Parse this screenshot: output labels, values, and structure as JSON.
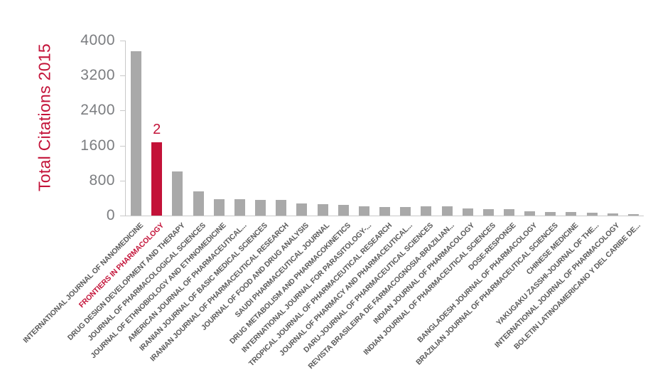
{
  "colors": {
    "accent": "#c31238",
    "bar": "#a9a9a9",
    "axis": "#c9c9c9",
    "tick_label": "#7b7d80",
    "category_label": "#595959"
  },
  "chart_data": {
    "type": "bar",
    "title": "",
    "xlabel": "",
    "ylabel": "Total Citations 2015",
    "ylim": [
      0,
      4000
    ],
    "yticks": [
      0,
      800,
      1600,
      2400,
      3200,
      4000
    ],
    "grid": false,
    "legend": false,
    "highlight_index": 1,
    "highlight_annotation": "2",
    "categories": [
      "INTERNATIONAL JOURNAL OF NANOMEDICINE",
      "FRONTIERS IN PHARMACOLOGY",
      "DRUG DESIGN DEVELOPMENT AND THERAPY",
      "JOURNAL OF PHARMACOLOGICAL SCIENCES",
      "JOURNAL OF ETHNOBIOLOGY AND ETHNOMEDICINE",
      "AMERICAN JOURNAL OF PHARMACEUTICAL...",
      "IRANIAN JOURNAL OF BASIC MEDICAL SCIENCES",
      "IRANIAN JOURNAL OF PHARMACEUTICAL RESEARCH",
      "JOURNAL OF FOOD AND DRUG ANALYSIS",
      "SAUDI PHARMACEUTICAL JOURNAL",
      "DRUG METABOLISM AND PHARMACOKINETICS",
      "INTERNATIONAL JOURNAL FOR PARASITOLOGY-...",
      "TROPICAL JOURNAL OF PHARMACEUTICAL RESEARCH",
      "JOURNAL OF PHARMACY AND PHARMACEUTICAL...",
      "DARU-JOURNAL OF PHARMACEUTICAL SCIENCES",
      "REVISTA BRASILEIRA DE FARMACOGNOSIA-BRAZILIAN...",
      "INDIAN JOURNAL OF PHARMACOLOGY",
      "INDIAN JOURNAL OF PHARMACEUTICAL SCIENCES",
      "DOSE-RESPONSE",
      "BANGLADESH JOURNAL OF PHARMACOLOGY",
      "BRAZILIAN JOURNAL OF PHARMACEUTICAL SCIENCES",
      "CHINESE MEDICINE",
      "YAKUGAKU ZASSHI-JOURNAL OF THE...",
      "INTERNATIONAL JOURNAL OF PHARMACOLOGY",
      "BOLETIN LATINOAMERICANO Y DEL CARIBE DE..."
    ],
    "values": [
      3750,
      1670,
      1010,
      550,
      375,
      370,
      360,
      360,
      270,
      260,
      250,
      220,
      200,
      195,
      205,
      220,
      170,
      155,
      140,
      105,
      85,
      90,
      60,
      55,
      30
    ]
  }
}
